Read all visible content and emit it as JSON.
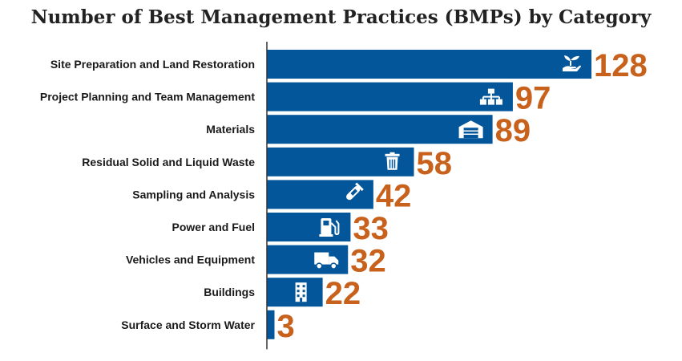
{
  "chart_data": {
    "type": "bar",
    "orientation": "horizontal",
    "title": "Number of Best Management Practices (BMPs) by Category",
    "categories": [
      "Site Preparation and Land Restoration",
      "Project Planning and Team Management",
      "Materials",
      "Residual Solid and Liquid Waste",
      "Sampling and Analysis",
      "Power and Fuel",
      "Vehicles and Equipment",
      "Buildings",
      "Surface and Storm Water"
    ],
    "values": [
      128,
      97,
      89,
      58,
      42,
      33,
      32,
      22,
      3
    ],
    "value_labels": [
      "128",
      "97",
      "89",
      "58",
      "42",
      "33",
      "32",
      "22",
      "3"
    ],
    "icons": [
      "seedling-in-hand-icon",
      "org-chart-icon",
      "warehouse-icon",
      "trash-can-icon",
      "test-tube-icon",
      "fuel-pump-icon",
      "truck-icon",
      "building-icon",
      ""
    ],
    "xlim": [
      0,
      128
    ],
    "grid": false,
    "colors": {
      "bar": "#04569a",
      "value_label": "#c7611b",
      "axis": "#333333"
    }
  }
}
